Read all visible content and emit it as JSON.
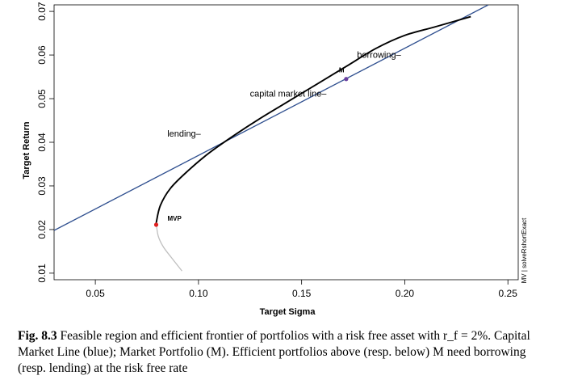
{
  "chart_data": {
    "type": "line",
    "title": "",
    "xlabel": "Target Sigma",
    "ylabel": "Target Return",
    "xlim": [
      0.03,
      0.255
    ],
    "ylim": [
      0.0085,
      0.0715
    ],
    "x_ticks": [
      0.05,
      0.1,
      0.15,
      0.2,
      0.25
    ],
    "y_ticks": [
      0.01,
      0.02,
      0.03,
      0.04,
      0.05,
      0.06,
      0.07
    ],
    "x_tick_labels": [
      "0.05",
      "0.10",
      "0.15",
      "0.20",
      "0.25"
    ],
    "y_tick_labels": [
      "0.01",
      "0.02",
      "0.03",
      "0.04",
      "0.05",
      "0.06",
      "0.07"
    ],
    "grid": false,
    "series": [
      {
        "role": "capital-market-line",
        "color": "#2f4f8f",
        "points": [
          [
            0.03,
            0.0198
          ],
          [
            0.2405,
            0.0715
          ]
        ]
      },
      {
        "role": "efficient-frontier",
        "color": "#000000",
        "points": [
          [
            0.0795,
            0.0215
          ],
          [
            0.0815,
            0.0255
          ],
          [
            0.0865,
            0.0295
          ],
          [
            0.095,
            0.0335
          ],
          [
            0.105,
            0.0375
          ],
          [
            0.117,
            0.0415
          ],
          [
            0.13,
            0.0455
          ],
          [
            0.144,
            0.0495
          ],
          [
            0.158,
            0.0535
          ],
          [
            0.172,
            0.0575
          ],
          [
            0.186,
            0.0615
          ],
          [
            0.2,
            0.0645
          ],
          [
            0.215,
            0.0665
          ],
          [
            0.232,
            0.0688
          ]
        ]
      },
      {
        "role": "inefficient-frontier",
        "color": "#bfbfbf",
        "points": [
          [
            0.0795,
            0.0215
          ],
          [
            0.0805,
            0.0185
          ],
          [
            0.083,
            0.016
          ],
          [
            0.087,
            0.0135
          ],
          [
            0.092,
            0.0105
          ]
        ]
      }
    ],
    "points": [
      {
        "label": "MVP",
        "x": 0.0795,
        "y": 0.0211,
        "color": "#e02020"
      },
      {
        "label": "M",
        "x": 0.1716,
        "y": 0.0545,
        "color": "#6a3fa0"
      }
    ],
    "annotations": [
      {
        "text": "borrowing–",
        "x": 0.1875,
        "y": 0.0594
      },
      {
        "text": "capital market line–",
        "x": 0.1435,
        "y": 0.0505
      },
      {
        "text": "lending–",
        "x": 0.093,
        "y": 0.0413
      }
    ],
    "side_note": "MV | solveRshortExact"
  },
  "caption": {
    "figure_label": "Fig. 8.3",
    "text": "Feasible region and efficient frontier of portfolios with a risk free asset with r_f = 2%. Capital Market Line (blue); Market Portfolio (M). Efficient portfolios above (resp. below) M need borrowing (resp. lending) at the risk free rate"
  }
}
